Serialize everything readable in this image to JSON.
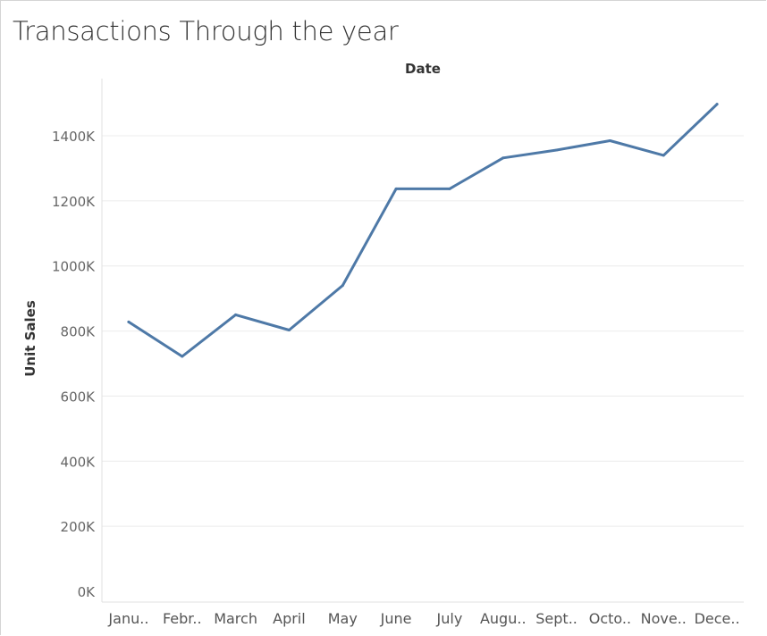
{
  "chart_data": {
    "type": "line",
    "title": "Transactions Through the year",
    "xlabel": "Date",
    "ylabel": "Unit Sales",
    "categories": [
      "Janu..",
      "Febr..",
      "March",
      "April",
      "May",
      "June",
      "July",
      "Augu..",
      "Sept..",
      "Octo..",
      "Nove..",
      "Dece.."
    ],
    "series": [
      {
        "name": "Unit Sales",
        "values": [
          828000,
          722000,
          850000,
          803000,
          940000,
          1237000,
          1237000,
          1332000,
          1356000,
          1385000,
          1340000,
          1497000
        ]
      }
    ],
    "ylim": [
      0,
      1500000
    ],
    "yticks": [
      0,
      200000,
      400000,
      600000,
      800000,
      1000000,
      1200000,
      1400000
    ],
    "ytick_labels": [
      "0K",
      "200K",
      "400K",
      "600K",
      "800K",
      "1000K",
      "1200K",
      "1400K"
    ],
    "grid": true,
    "colors": {
      "line": "#4e79a7",
      "grid": "#ececec",
      "axis": "#e0e0e0"
    }
  }
}
